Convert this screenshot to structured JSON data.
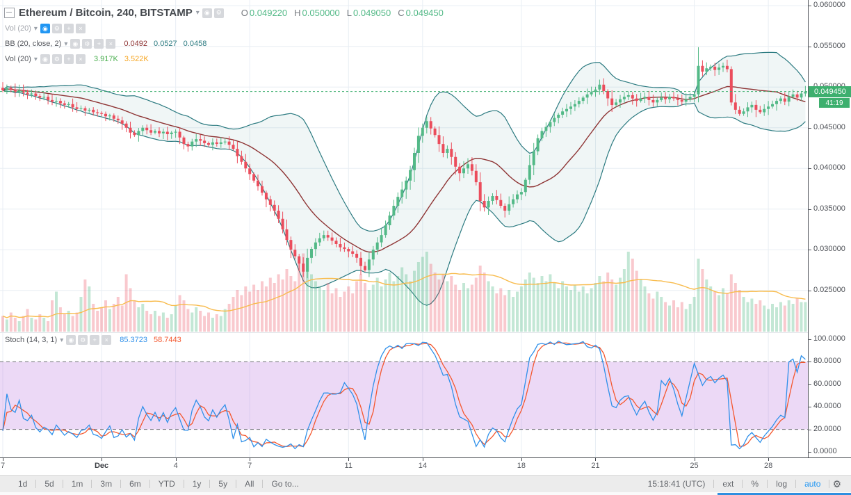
{
  "icons": {
    "caret": "▾",
    "eye": "◉",
    "gear": "⚙",
    "plus": "+",
    "close": "×",
    "toolbar_gear": "⚙"
  },
  "header": {
    "title": "Ethereum / Bitcoin, 240, BITSTAMP",
    "ohlc": {
      "o_label": "O",
      "o": "0.049220",
      "h_label": "H",
      "h": "0.050000",
      "l_label": "L",
      "l": "0.049050",
      "c_label": "C",
      "c": "0.049450"
    }
  },
  "indicators": {
    "vol_overlay": {
      "label": "Vol (20)"
    },
    "bb": {
      "label": "BB (20, close, 2)",
      "v1": "0.0492",
      "v2": "0.0527",
      "v3": "0.0458"
    },
    "vol": {
      "label": "Vol (20)",
      "v1": "3.917K",
      "v2": "3.522K"
    },
    "stoch": {
      "label": "Stoch (14, 3, 1)",
      "v1": "85.3723",
      "v2": "58.7443"
    }
  },
  "axis": {
    "price_labels": [
      "0.060000",
      "0.055000",
      "0.050000",
      "0.045000",
      "0.040000",
      "0.035000",
      "0.030000",
      "0.025000"
    ],
    "stoch_labels": [
      "100.0000",
      "80.0000",
      "60.0000",
      "40.0000",
      "20.0000",
      "0.0000"
    ],
    "current_price": "0.049450",
    "countdown": "41:19",
    "time_labels": [
      {
        "text": "7",
        "i": 0
      },
      {
        "text": "Dec",
        "i": 24,
        "bold": true
      },
      {
        "text": "4",
        "i": 42
      },
      {
        "text": "7",
        "i": 60
      },
      {
        "text": "11",
        "i": 84
      },
      {
        "text": "14",
        "i": 102
      },
      {
        "text": "18",
        "i": 126
      },
      {
        "text": "21",
        "i": 144
      },
      {
        "text": "25",
        "i": 168
      },
      {
        "text": "28",
        "i": 186
      }
    ]
  },
  "toolbar": {
    "ranges": [
      "1d",
      "5d",
      "1m",
      "3m",
      "6m",
      "YTD",
      "1y",
      "5y",
      "All"
    ],
    "goto": "Go to...",
    "clock": "15:18:41 (UTC)",
    "right_items": [
      "ext",
      "%",
      "log",
      "auto"
    ]
  },
  "colors": {
    "up": "#53b987",
    "down": "#eb4d5c",
    "up_fill": "rgba(83,185,135,0.35)",
    "down_fill": "rgba(235,77,92,0.30)",
    "bb_line": "#2b7a80",
    "bb_fill": "rgba(43,122,128,0.07)",
    "bb_basis": "#8e3434",
    "vol_ma": "#f8bb4c",
    "stoch_k": "#2f90ea",
    "stoch_d": "#f4572e",
    "band_fill": "rgba(178,102,221,0.25)",
    "dash_gray": "#6a6d72",
    "grid": "#e8eef4",
    "price_line": "#3daf6e",
    "accent_blue": "#2196f3"
  },
  "chart_data": {
    "type": "candlestick",
    "symbol": "Ethereum / Bitcoin",
    "exchange": "BITSTAMP",
    "interval_minutes": 240,
    "candles_per_day": 6,
    "price_ylim": [
      0.0225,
      0.0607
    ],
    "current_price": 0.04945,
    "overlays": {
      "bollinger": {
        "length": 20,
        "stdev_mult": 2
      },
      "volume_ma_length": 20
    },
    "stoch_pane": {
      "k_length": 14,
      "d_smooth": 3,
      "overbought": 80,
      "oversold": 20,
      "ylim": [
        0,
        100
      ],
      "last_k": 85.3723,
      "last_d": 58.7443
    },
    "closes": [
      0.0496,
      0.0499,
      0.0497,
      0.0494,
      0.0496,
      0.0493,
      0.0491,
      0.0492,
      0.0489,
      0.0487,
      0.0488,
      0.0484,
      0.0482,
      0.0483,
      0.048,
      0.0478,
      0.0479,
      0.0475,
      0.0473,
      0.0474,
      0.0471,
      0.0472,
      0.0469,
      0.0468,
      0.0467,
      0.0464,
      0.0465,
      0.0461,
      0.0459,
      0.0455,
      0.045,
      0.0444,
      0.0441,
      0.0446,
      0.045,
      0.0447,
      0.0444,
      0.0446,
      0.0443,
      0.0445,
      0.0442,
      0.0444,
      0.0445,
      0.0438,
      0.043,
      0.0427,
      0.0433,
      0.0436,
      0.0434,
      0.0431,
      0.0429,
      0.0432,
      0.043,
      0.0432,
      0.0433,
      0.0429,
      0.0424,
      0.0415,
      0.0408,
      0.04,
      0.0393,
      0.0385,
      0.0378,
      0.037,
      0.0362,
      0.0355,
      0.0348,
      0.0338,
      0.0325,
      0.0312,
      0.03,
      0.0292,
      0.0283,
      0.0273,
      0.029,
      0.0301,
      0.0309,
      0.0314,
      0.0318,
      0.0315,
      0.0311,
      0.0307,
      0.0303,
      0.0301,
      0.0298,
      0.0295,
      0.029,
      0.028,
      0.0275,
      0.0288,
      0.03,
      0.0309,
      0.0318,
      0.033,
      0.0342,
      0.0354,
      0.0365,
      0.0374,
      0.0385,
      0.0398,
      0.0419,
      0.044,
      0.045,
      0.0458,
      0.0449,
      0.0441,
      0.043,
      0.0419,
      0.0424,
      0.0414,
      0.0402,
      0.0394,
      0.04,
      0.0405,
      0.0397,
      0.0383,
      0.036,
      0.0352,
      0.036,
      0.0366,
      0.0361,
      0.0354,
      0.0348,
      0.0356,
      0.0362,
      0.0368,
      0.0371,
      0.0386,
      0.0404,
      0.0421,
      0.0437,
      0.0446,
      0.0451,
      0.0457,
      0.0462,
      0.0466,
      0.047,
      0.0473,
      0.0476,
      0.0479,
      0.0483,
      0.0487,
      0.0491,
      0.0494,
      0.0497,
      0.0503,
      0.0495,
      0.0486,
      0.0478,
      0.0481,
      0.0485,
      0.0488,
      0.049,
      0.0486,
      0.0483,
      0.0486,
      0.0488,
      0.0484,
      0.0481,
      0.0484,
      0.0487,
      0.0485,
      0.0488,
      0.0486,
      0.0484,
      0.0482,
      0.0485,
      0.0488,
      0.0491,
      0.0526,
      0.0519,
      0.0523,
      0.0525,
      0.0521,
      0.0524,
      0.0526,
      0.0522,
      0.0481,
      0.0472,
      0.0467,
      0.047,
      0.0475,
      0.0478,
      0.0472,
      0.0469,
      0.0473,
      0.0476,
      0.0479,
      0.0483,
      0.0486,
      0.0482,
      0.0488,
      0.0491,
      0.0487,
      0.0492,
      0.04945
    ],
    "volumes_k": [
      0.9,
      0.7,
      1.1,
      0.8,
      0.6,
      0.9,
      1.3,
      0.8,
      0.7,
      1.0,
      0.8,
      0.6,
      1.8,
      2.3,
      1.4,
      1.0,
      1.2,
      0.9,
      1.1,
      2.0,
      3.0,
      2.6,
      1.6,
      1.2,
      1.4,
      1.8,
      1.3,
      1.6,
      2.0,
      1.5,
      3.3,
      2.5,
      1.8,
      1.4,
      1.6,
      1.2,
      1.0,
      1.2,
      0.9,
      1.1,
      0.8,
      1.0,
      1.5,
      2.1,
      1.8,
      1.3,
      1.1,
      1.4,
      1.2,
      0.9,
      1.1,
      0.8,
      1.0,
      0.9,
      1.3,
      1.6,
      2.0,
      2.4,
      2.1,
      2.6,
      2.3,
      2.7,
      2.4,
      2.9,
      2.6,
      3.1,
      2.8,
      3.3,
      3.0,
      3.6,
      3.2,
      2.9,
      4.2,
      4.5,
      3.8,
      3.3,
      2.9,
      2.6,
      2.4,
      2.8,
      2.2,
      2.5,
      2.0,
      2.3,
      2.6,
      2.2,
      2.9,
      3.3,
      2.8,
      2.4,
      2.7,
      3.1,
      2.6,
      3.0,
      3.4,
      2.9,
      3.2,
      3.7,
      3.3,
      2.9,
      3.5,
      4.0,
      4.3,
      4.6,
      3.9,
      3.4,
      3.0,
      3.3,
      2.9,
      3.2,
      2.7,
      2.4,
      2.8,
      2.5,
      2.7,
      3.1,
      3.8,
      3.4,
      2.9,
      2.6,
      2.2,
      2.5,
      2.1,
      2.4,
      2.0,
      2.3,
      2.6,
      3.0,
      3.4,
      3.1,
      2.8,
      3.2,
      2.9,
      3.3,
      2.8,
      2.5,
      2.9,
      2.6,
      2.4,
      2.7,
      2.3,
      2.6,
      2.2,
      2.5,
      2.8,
      3.2,
      2.9,
      3.4,
      3.0,
      2.7,
      3.1,
      3.6,
      4.6,
      4.2,
      3.5,
      3.0,
      2.6,
      2.2,
      1.9,
      2.3,
      2.0,
      1.7,
      1.5,
      1.8,
      1.4,
      1.7,
      1.3,
      1.6,
      2.0,
      4.2,
      3.6,
      3.0,
      2.6,
      2.3,
      2.1,
      2.5,
      2.2,
      3.3,
      2.8,
      2.4,
      2.0,
      1.7,
      1.9,
      1.6,
      1.8,
      1.5,
      1.3,
      1.6,
      1.4,
      1.7,
      1.5,
      1.8,
      1.6,
      1.9,
      1.7,
      1.7
    ]
  }
}
